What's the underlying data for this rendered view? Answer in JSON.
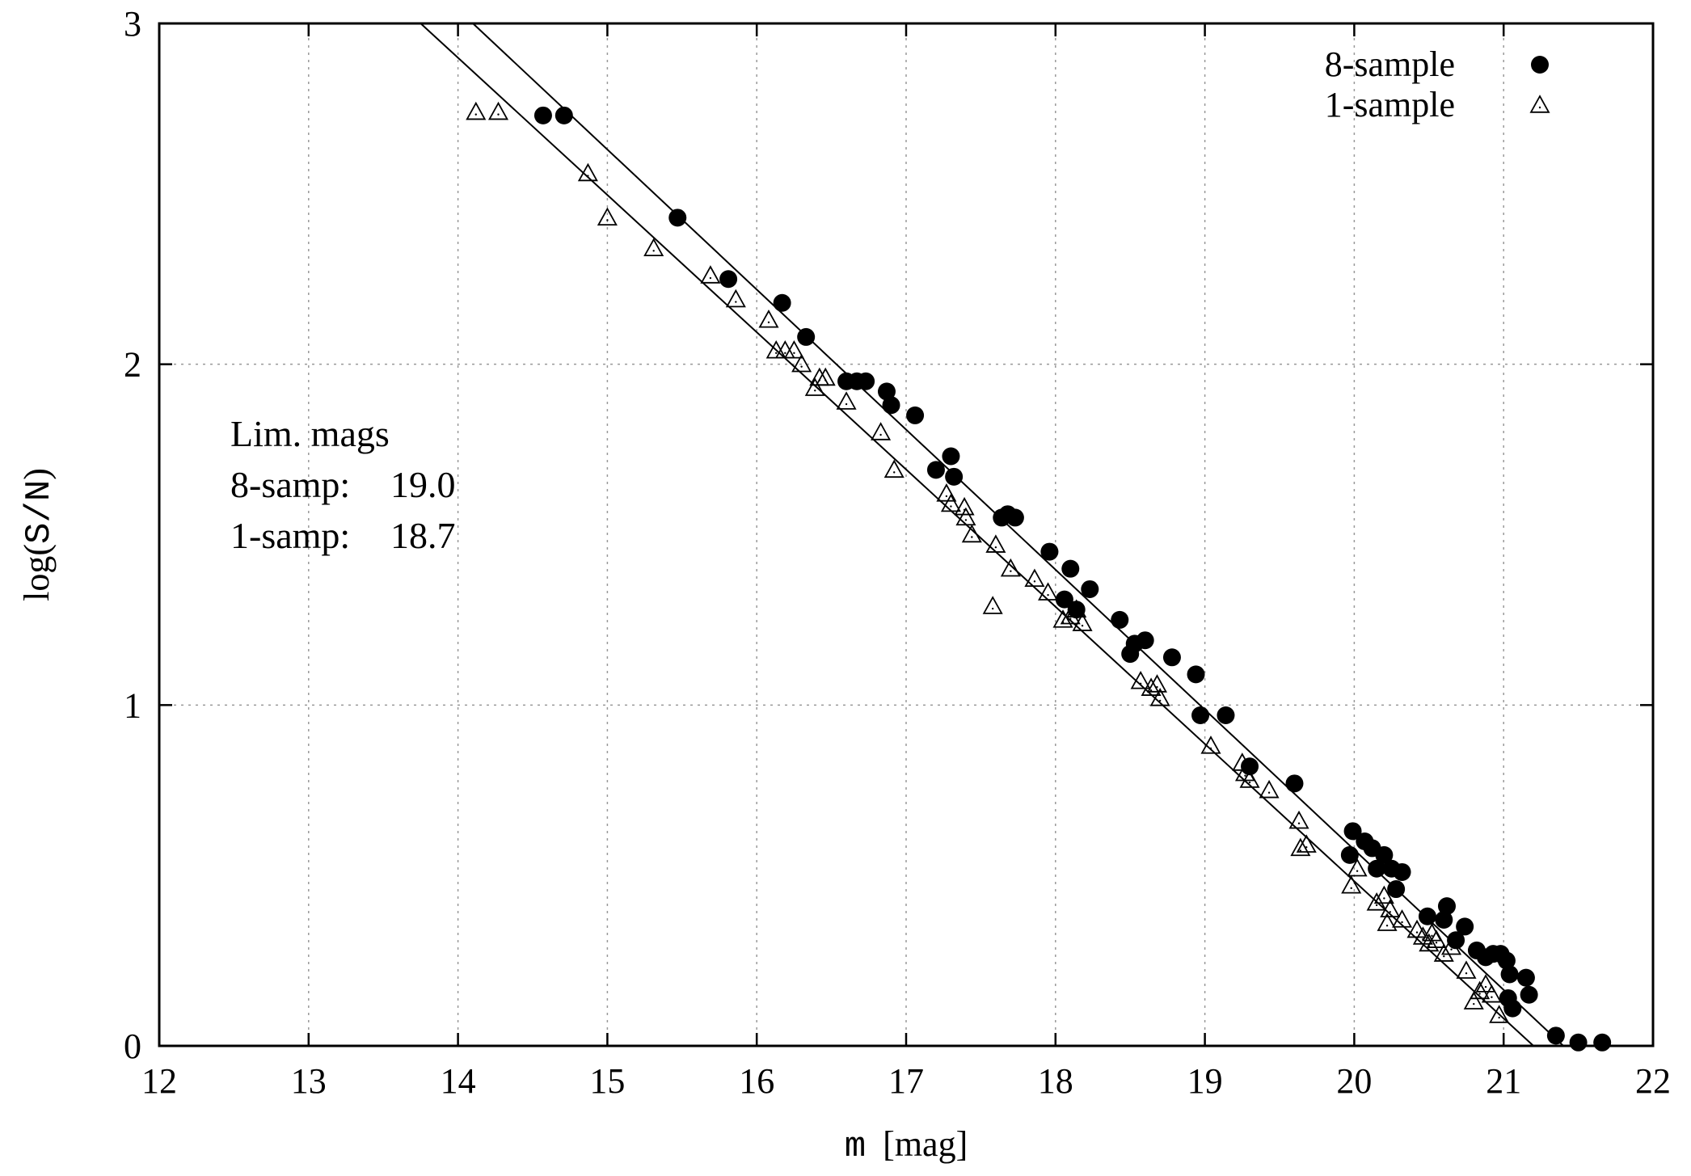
{
  "chart_data": {
    "type": "scatter",
    "title": "",
    "xlabel": "[mag]",
    "xlabel_symbol": "m",
    "ylabel": "log(S/N)",
    "ylabel_prefix": "log(",
    "ylabel_mono": "S/N",
    "ylabel_suffix": ")",
    "xlim": [
      12,
      22
    ],
    "ylim": [
      0,
      3
    ],
    "xticks": [
      12,
      13,
      14,
      15,
      16,
      17,
      18,
      19,
      20,
      21,
      22
    ],
    "yticks": [
      0,
      1,
      2,
      3
    ],
    "grid": true,
    "legend_position": "top-right",
    "annotation": {
      "title": "Lim. mags",
      "lines": [
        {
          "label": "8-samp:",
          "value": "19.0"
        },
        {
          "label": "1-samp:",
          "value": "18.7"
        }
      ]
    },
    "fit_lines": [
      {
        "name": "8-sample fit",
        "points": [
          [
            14.1,
            3.0
          ],
          [
            21.4,
            0.0
          ]
        ]
      },
      {
        "name": "1-sample fit",
        "points": [
          [
            13.75,
            3.0
          ],
          [
            21.2,
            0.0
          ]
        ]
      }
    ],
    "series": [
      {
        "name": "8-sample",
        "marker": "filled-circle",
        "points": [
          [
            14.57,
            2.73
          ],
          [
            14.71,
            2.73
          ],
          [
            15.47,
            2.43
          ],
          [
            15.81,
            2.25
          ],
          [
            16.17,
            2.18
          ],
          [
            16.33,
            2.08
          ],
          [
            16.6,
            1.95
          ],
          [
            16.67,
            1.95
          ],
          [
            16.73,
            1.95
          ],
          [
            16.87,
            1.92
          ],
          [
            16.9,
            1.88
          ],
          [
            17.06,
            1.85
          ],
          [
            17.2,
            1.69
          ],
          [
            17.3,
            1.73
          ],
          [
            17.32,
            1.67
          ],
          [
            17.64,
            1.55
          ],
          [
            17.68,
            1.56
          ],
          [
            17.73,
            1.55
          ],
          [
            17.96,
            1.45
          ],
          [
            18.06,
            1.31
          ],
          [
            18.1,
            1.4
          ],
          [
            18.14,
            1.28
          ],
          [
            18.23,
            1.34
          ],
          [
            18.43,
            1.25
          ],
          [
            18.5,
            1.15
          ],
          [
            18.53,
            1.18
          ],
          [
            18.6,
            1.19
          ],
          [
            18.78,
            1.14
          ],
          [
            18.94,
            1.09
          ],
          [
            18.97,
            0.97
          ],
          [
            19.14,
            0.97
          ],
          [
            19.3,
            0.82
          ],
          [
            19.6,
            0.77
          ],
          [
            19.97,
            0.56
          ],
          [
            19.99,
            0.63
          ],
          [
            20.07,
            0.6
          ],
          [
            20.12,
            0.58
          ],
          [
            20.15,
            0.52
          ],
          [
            20.2,
            0.56
          ],
          [
            20.25,
            0.52
          ],
          [
            20.28,
            0.46
          ],
          [
            20.32,
            0.51
          ],
          [
            20.49,
            0.38
          ],
          [
            20.6,
            0.37
          ],
          [
            20.62,
            0.41
          ],
          [
            20.68,
            0.31
          ],
          [
            20.74,
            0.35
          ],
          [
            20.82,
            0.28
          ],
          [
            20.88,
            0.26
          ],
          [
            20.93,
            0.27
          ],
          [
            20.98,
            0.27
          ],
          [
            21.02,
            0.25
          ],
          [
            21.04,
            0.21
          ],
          [
            21.03,
            0.14
          ],
          [
            21.06,
            0.11
          ],
          [
            21.15,
            0.2
          ],
          [
            21.17,
            0.15
          ],
          [
            21.35,
            0.03
          ],
          [
            21.5,
            0.01
          ],
          [
            21.66,
            0.01
          ]
        ]
      },
      {
        "name": "1-sample",
        "marker": "open-triangle",
        "points": [
          [
            14.12,
            2.74
          ],
          [
            14.27,
            2.74
          ],
          [
            14.87,
            2.56
          ],
          [
            15.0,
            2.43
          ],
          [
            15.31,
            2.34
          ],
          [
            15.69,
            2.26
          ],
          [
            15.86,
            2.19
          ],
          [
            16.08,
            2.13
          ],
          [
            16.13,
            2.04
          ],
          [
            16.19,
            2.04
          ],
          [
            16.25,
            2.04
          ],
          [
            16.3,
            2.0
          ],
          [
            16.39,
            1.93
          ],
          [
            16.42,
            1.96
          ],
          [
            16.46,
            1.96
          ],
          [
            16.6,
            1.89
          ],
          [
            16.83,
            1.8
          ],
          [
            16.92,
            1.69
          ],
          [
            17.27,
            1.62
          ],
          [
            17.3,
            1.59
          ],
          [
            17.39,
            1.58
          ],
          [
            17.4,
            1.55
          ],
          [
            17.44,
            1.5
          ],
          [
            17.6,
            1.47
          ],
          [
            17.58,
            1.29
          ],
          [
            17.7,
            1.4
          ],
          [
            17.86,
            1.37
          ],
          [
            17.95,
            1.33
          ],
          [
            18.05,
            1.25
          ],
          [
            18.1,
            1.26
          ],
          [
            18.14,
            1.28
          ],
          [
            18.18,
            1.24
          ],
          [
            18.57,
            1.07
          ],
          [
            18.64,
            1.05
          ],
          [
            18.68,
            1.06
          ],
          [
            18.7,
            1.02
          ],
          [
            19.04,
            0.88
          ],
          [
            19.25,
            0.83
          ],
          [
            19.27,
            0.8
          ],
          [
            19.3,
            0.78
          ],
          [
            19.43,
            0.75
          ],
          [
            19.63,
            0.66
          ],
          [
            19.64,
            0.58
          ],
          [
            19.68,
            0.59
          ],
          [
            19.98,
            0.47
          ],
          [
            20.02,
            0.52
          ],
          [
            20.15,
            0.42
          ],
          [
            20.2,
            0.44
          ],
          [
            20.22,
            0.36
          ],
          [
            20.24,
            0.4
          ],
          [
            20.32,
            0.37
          ],
          [
            20.42,
            0.34
          ],
          [
            20.46,
            0.32
          ],
          [
            20.5,
            0.3
          ],
          [
            20.52,
            0.33
          ],
          [
            20.55,
            0.31
          ],
          [
            20.6,
            0.27
          ],
          [
            20.65,
            0.29
          ],
          [
            20.75,
            0.22
          ],
          [
            20.8,
            0.13
          ],
          [
            20.84,
            0.16
          ],
          [
            20.88,
            0.18
          ],
          [
            20.92,
            0.15
          ],
          [
            20.97,
            0.09
          ]
        ]
      }
    ]
  }
}
